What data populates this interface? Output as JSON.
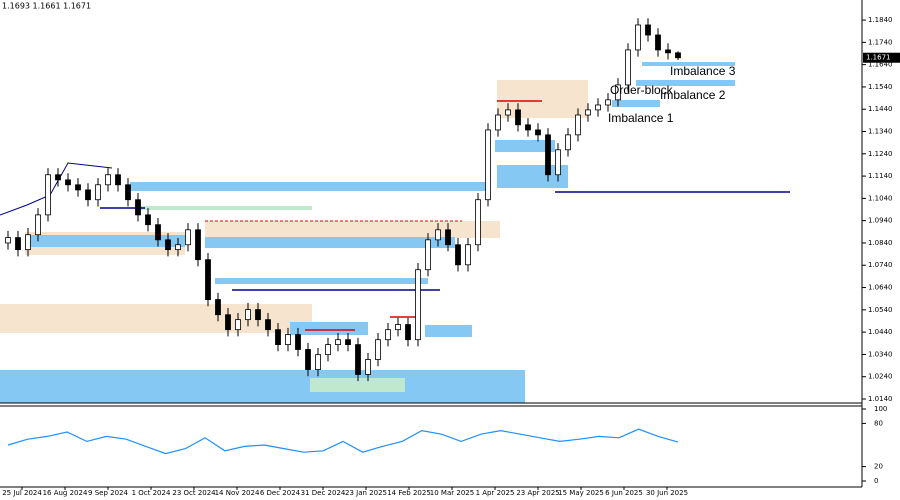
{
  "chart_data": [
    {
      "type": "candlestick",
      "header": "1.1693 1.1661 1.1671",
      "open": [
        1.084,
        1.0864,
        1.081,
        1.0877,
        1.0966,
        1.1146,
        1.1123,
        1.1101,
        1.1078,
        1.1034,
        1.1101,
        1.1146,
        1.1101,
        1.1034,
        1.0966,
        1.0922,
        1.0854,
        1.081,
        1.0832,
        1.0899,
        1.0765,
        1.0586,
        1.0518,
        1.0451,
        1.0496,
        1.0541,
        1.0496,
        1.0451,
        1.0384,
        1.0429,
        1.0362,
        1.0272,
        1.0339,
        1.0384,
        1.0406,
        1.0384,
        1.025,
        1.0317,
        1.0406,
        1.0451,
        1.0474,
        1.0406,
        1.072,
        1.0854,
        1.0899,
        1.0832,
        1.0742,
        1.0832,
        1.1034,
        1.1347,
        1.1414,
        1.1437,
        1.137,
        1.1347,
        1.1325,
        1.1146,
        1.1258,
        1.1325,
        1.1414,
        1.1437,
        1.1459,
        1.1482,
        1.1549,
        1.1706,
        1.1818,
        1.1773,
        1.1706,
        1.1693
      ],
      "high": [
        1.0894,
        1.0894,
        1.0907,
        1.0996,
        1.1176,
        1.1176,
        1.1153,
        1.1131,
        1.1108,
        1.1131,
        1.1176,
        1.1176,
        1.1131,
        1.1064,
        1.0996,
        1.0952,
        1.0884,
        1.0862,
        1.0929,
        1.0929,
        1.0795,
        1.0616,
        1.0548,
        1.0526,
        1.0571,
        1.0571,
        1.0526,
        1.0481,
        1.0459,
        1.0459,
        1.0392,
        1.0369,
        1.0414,
        1.0436,
        1.0436,
        1.0414,
        1.0347,
        1.0436,
        1.0481,
        1.0504,
        1.0504,
        1.075,
        1.0884,
        1.0929,
        1.0929,
        1.0862,
        1.0862,
        1.1064,
        1.1377,
        1.1444,
        1.1467,
        1.1467,
        1.14,
        1.1377,
        1.1355,
        1.1288,
        1.1355,
        1.1444,
        1.1467,
        1.1489,
        1.1512,
        1.1579,
        1.1736,
        1.1848,
        1.1848,
        1.1803,
        1.1736,
        1.17
      ],
      "low": [
        1.081,
        1.078,
        1.078,
        1.0847,
        1.0936,
        1.1093,
        1.1071,
        1.1048,
        1.1004,
        1.1004,
        1.1071,
        1.1071,
        1.1004,
        1.0936,
        1.0892,
        1.0824,
        1.078,
        1.078,
        1.0802,
        1.0735,
        1.0556,
        1.0488,
        1.0421,
        1.0421,
        1.0466,
        1.0466,
        1.0421,
        1.0354,
        1.0354,
        1.0332,
        1.0242,
        1.0242,
        1.0309,
        1.0354,
        1.0354,
        1.022,
        1.022,
        1.0287,
        1.0376,
        1.0421,
        1.0376,
        1.0376,
        1.069,
        1.0824,
        1.0802,
        1.0712,
        1.0712,
        1.0802,
        1.1004,
        1.1317,
        1.1384,
        1.134,
        1.1317,
        1.1295,
        1.1116,
        1.1116,
        1.1228,
        1.1295,
        1.1384,
        1.1407,
        1.1429,
        1.1452,
        1.1519,
        1.1676,
        1.1743,
        1.1676,
        1.1663,
        1.1661
      ],
      "close": [
        1.0864,
        1.081,
        1.0877,
        1.0966,
        1.1146,
        1.1123,
        1.1101,
        1.1078,
        1.1034,
        1.1101,
        1.1146,
        1.1101,
        1.1034,
        1.0966,
        1.0922,
        1.0854,
        1.081,
        1.0832,
        1.0899,
        1.0765,
        1.0586,
        1.0518,
        1.0451,
        1.0496,
        1.0541,
        1.0496,
        1.0451,
        1.0384,
        1.0429,
        1.0362,
        1.0272,
        1.0339,
        1.0384,
        1.0406,
        1.0384,
        1.025,
        1.0317,
        1.0406,
        1.0451,
        1.0474,
        1.0406,
        1.072,
        1.0854,
        1.0899,
        1.0832,
        1.0742,
        1.0832,
        1.1034,
        1.1347,
        1.1414,
        1.1437,
        1.137,
        1.1347,
        1.1325,
        1.1146,
        1.1258,
        1.1325,
        1.1414,
        1.1437,
        1.1459,
        1.1482,
        1.1549,
        1.1706,
        1.1818,
        1.1773,
        1.1706,
        1.1693,
        1.1671
      ],
      "x_tick_labels": [
        "25 Jul 2024",
        "16 Aug 2024",
        "9 Sep 2024",
        "1 Oct 2024",
        "23 Oct 2024",
        "14 Nov 2024",
        "6 Dec 2024",
        "31 Dec 2024",
        "23 Jan 2025",
        "14 Feb 2025",
        "10 Mar 2025",
        "1 Apr 2025",
        "23 Apr 2025",
        "15 May 2025",
        "6 Jun 2025",
        "30 Jun 2025"
      ],
      "ylim": [
        1.0122,
        1.193
      ],
      "yticks": [
        {
          "value": 1.184,
          "label": "1.1840"
        },
        {
          "value": 1.174,
          "label": "1.1740"
        },
        {
          "value": 1.164,
          "label": "1.1640"
        },
        {
          "value": 1.154,
          "label": "1.1540"
        },
        {
          "value": 1.144,
          "label": "1.1440"
        },
        {
          "value": 1.134,
          "label": "1.1340"
        },
        {
          "value": 1.124,
          "label": "1.1240"
        },
        {
          "value": 1.114,
          "label": "1.1140"
        },
        {
          "value": 1.104,
          "label": "1.1040"
        },
        {
          "value": 1.094,
          "label": "1.0940"
        },
        {
          "value": 1.084,
          "label": "1.0840"
        },
        {
          "value": 1.074,
          "label": "1.0740"
        },
        {
          "value": 1.064,
          "label": "1.0640"
        },
        {
          "value": 1.054,
          "label": "1.0540"
        },
        {
          "value": 1.044,
          "label": "1.0440"
        },
        {
          "value": 1.034,
          "label": "1.0340"
        },
        {
          "value": 1.024,
          "label": "1.0240"
        },
        {
          "value": 1.014,
          "label": "1.0140"
        }
      ],
      "annotations": [
        "Order-block",
        "Imbalance 1",
        "Imbalance 2",
        "Imbalance 3"
      ]
    },
    {
      "type": "line",
      "color": "#1e90ff",
      "values": [
        50,
        58,
        62,
        68,
        55,
        62,
        58,
        48,
        38,
        45,
        60,
        42,
        48,
        50,
        45,
        40,
        42,
        55,
        40,
        48,
        55,
        70,
        65,
        55,
        65,
        70,
        65,
        60,
        55,
        58,
        62,
        60,
        72,
        62,
        54
      ],
      "ylim": [
        0,
        100
      ],
      "yticks": [
        100,
        80,
        20,
        0
      ]
    }
  ]
}
